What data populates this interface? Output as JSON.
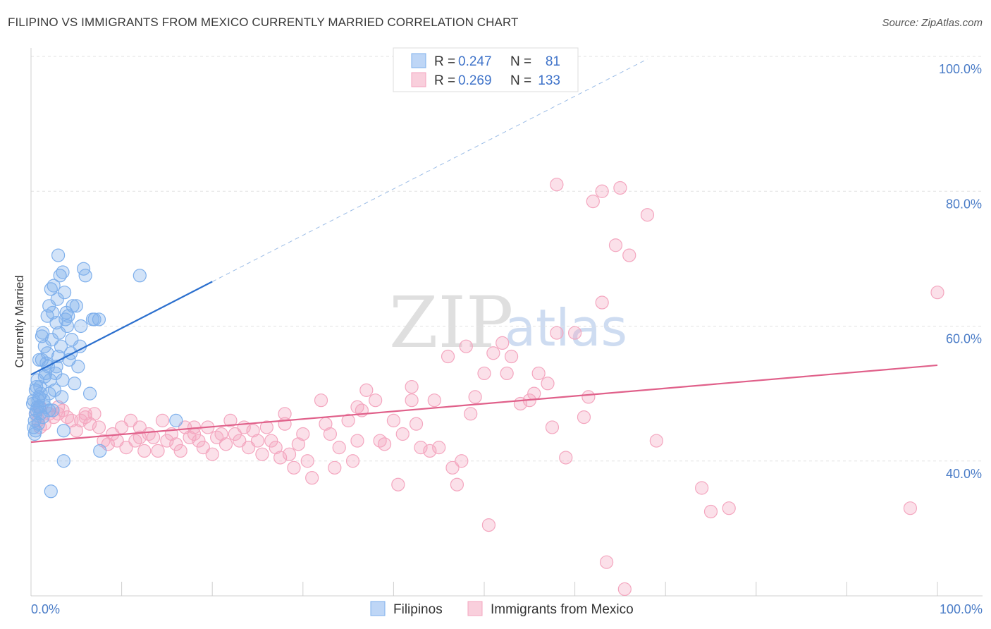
{
  "chart_data": {
    "type": "scatter",
    "title": "FILIPINO VS IMMIGRANTS FROM MEXICO CURRENTLY MARRIED CORRELATION CHART",
    "source": "Source: ZipAtlas.com",
    "ylabel": "Currently Married",
    "xlabel": "",
    "xlim": [
      0,
      100
    ],
    "ylim": [
      20,
      100
    ],
    "x_tick_labels": [
      "0.0%",
      "100.0%"
    ],
    "y_ticks": [
      {
        "value": 100,
        "label": "100.0%"
      },
      {
        "value": 80,
        "label": "80.0%"
      },
      {
        "value": 60,
        "label": "60.0%"
      },
      {
        "value": 40,
        "label": "40.0%"
      }
    ],
    "grid": true,
    "watermark": {
      "part1": "ZIP",
      "part2": "atlas"
    },
    "legend": {
      "placement": "top-center",
      "entries": [
        {
          "r_label": "R =",
          "r_value": "0.247",
          "n_label": "N =",
          "n_value": "81"
        },
        {
          "r_label": "R =",
          "r_value": "0.269",
          "n_label": "N =",
          "n_value": "133"
        }
      ]
    },
    "series": [
      {
        "name": "Filipinos",
        "color": "#7fb0ec",
        "line_color": "#2b6fce",
        "trend": {
          "x0": 0,
          "y0": 52.8,
          "x1": 20,
          "y1": 66.6,
          "dashed_to_x": 68,
          "dashed_to_y": 99.6
        },
        "points": [
          [
            0.3,
            45
          ],
          [
            0.5,
            44.5
          ],
          [
            0.4,
            46
          ],
          [
            0.6,
            47.5
          ],
          [
            0.8,
            49
          ],
          [
            0.5,
            50.5
          ],
          [
            1,
            51
          ],
          [
            0.7,
            48
          ],
          [
            0.9,
            49.5
          ],
          [
            1.2,
            55
          ],
          [
            1.5,
            57
          ],
          [
            1.3,
            59
          ],
          [
            1.8,
            56
          ],
          [
            2,
            63
          ],
          [
            2.2,
            65.5
          ],
          [
            2.5,
            66
          ],
          [
            3,
            70.5
          ],
          [
            3.2,
            67.5
          ],
          [
            3.5,
            68
          ],
          [
            2.8,
            60.5
          ],
          [
            2.4,
            62
          ],
          [
            1.6,
            53
          ],
          [
            1.9,
            54
          ],
          [
            2.1,
            52
          ],
          [
            2.6,
            50.5
          ],
          [
            3.4,
            49.5
          ],
          [
            3.8,
            61
          ],
          [
            4.2,
            55
          ],
          [
            4.5,
            58
          ],
          [
            5,
            63
          ],
          [
            5.5,
            60
          ],
          [
            6,
            67.5
          ],
          [
            5.8,
            68.5
          ],
          [
            7,
            61
          ],
          [
            3.6,
            44.5
          ],
          [
            3.6,
            40
          ],
          [
            2.2,
            35.5
          ],
          [
            0.4,
            44
          ],
          [
            1.1,
            50
          ],
          [
            0.9,
            48
          ],
          [
            1.3,
            46.5
          ],
          [
            2,
            47.5
          ],
          [
            0.6,
            51
          ],
          [
            1.7,
            54.5
          ],
          [
            2.3,
            58
          ],
          [
            3,
            55.5
          ],
          [
            3.3,
            57
          ],
          [
            4,
            60
          ],
          [
            4.8,
            51.5
          ],
          [
            5.2,
            54
          ],
          [
            6.5,
            50
          ],
          [
            7.5,
            61
          ],
          [
            12,
            67.5
          ],
          [
            16,
            46
          ],
          [
            7.6,
            41.5
          ],
          [
            1,
            47
          ],
          [
            1.4,
            49
          ],
          [
            0.2,
            48.5
          ],
          [
            0.7,
            52
          ],
          [
            2.7,
            53
          ],
          [
            3.9,
            62
          ],
          [
            4.4,
            56
          ],
          [
            2.9,
            64
          ],
          [
            3.1,
            59
          ],
          [
            1.5,
            52.5
          ],
          [
            2.4,
            47.5
          ],
          [
            0.9,
            55
          ],
          [
            1.8,
            61.5
          ],
          [
            3.7,
            65
          ],
          [
            4.6,
            63
          ],
          [
            0.5,
            47
          ],
          [
            1.2,
            58.5
          ],
          [
            2,
            50
          ],
          [
            3.5,
            52
          ],
          [
            0.3,
            49
          ],
          [
            0.8,
            45.5
          ],
          [
            1.6,
            48
          ],
          [
            2.8,
            54
          ],
          [
            4.1,
            61.5
          ],
          [
            5.4,
            57
          ],
          [
            6.8,
            61
          ]
        ]
      },
      {
        "name": "Immigrants from Mexico",
        "color": "#f4a6bf",
        "line_color": "#e0608a",
        "trend": {
          "x0": 0,
          "y0": 42.8,
          "x1": 100,
          "y1": 54.2
        },
        "points": [
          [
            0.5,
            47
          ],
          [
            1,
            48
          ],
          [
            1.5,
            45.5
          ],
          [
            2,
            47
          ],
          [
            2.5,
            46.5
          ],
          [
            3,
            48
          ],
          [
            3.5,
            47.5
          ],
          [
            4,
            46.5
          ],
          [
            4.5,
            46
          ],
          [
            5,
            44.5
          ],
          [
            5.5,
            46
          ],
          [
            6,
            47
          ],
          [
            6.5,
            45.5
          ],
          [
            7,
            47
          ],
          [
            7.5,
            45
          ],
          [
            8,
            43
          ],
          [
            8.5,
            42.5
          ],
          [
            9,
            44
          ],
          [
            9.5,
            43
          ],
          [
            10,
            45
          ],
          [
            10.5,
            42
          ],
          [
            11,
            46
          ],
          [
            11.5,
            43
          ],
          [
            12,
            45
          ],
          [
            12.5,
            41.5
          ],
          [
            13,
            44
          ],
          [
            13.5,
            43.5
          ],
          [
            14,
            41.5
          ],
          [
            14.5,
            46
          ],
          [
            15,
            43
          ],
          [
            15.5,
            44
          ],
          [
            16,
            42.5
          ],
          [
            16.5,
            41.5
          ],
          [
            17,
            45
          ],
          [
            17.5,
            43.5
          ],
          [
            18,
            44
          ],
          [
            18.5,
            43
          ],
          [
            19,
            42
          ],
          [
            19.5,
            45
          ],
          [
            20,
            41
          ],
          [
            20.5,
            43.5
          ],
          [
            21,
            44
          ],
          [
            21.5,
            42.5
          ],
          [
            22,
            46
          ],
          [
            22.5,
            44
          ],
          [
            23,
            43
          ],
          [
            23.5,
            45
          ],
          [
            24,
            42
          ],
          [
            24.5,
            44.5
          ],
          [
            25,
            43
          ],
          [
            25.5,
            41
          ],
          [
            26,
            45
          ],
          [
            26.5,
            43
          ],
          [
            27,
            42
          ],
          [
            27.5,
            40.5
          ],
          [
            28,
            45.5
          ],
          [
            28.5,
            41
          ],
          [
            29,
            39
          ],
          [
            29.5,
            42.5
          ],
          [
            30,
            44
          ],
          [
            30.5,
            40
          ],
          [
            31,
            37.5
          ],
          [
            32,
            49
          ],
          [
            32.5,
            45.5
          ],
          [
            33,
            44
          ],
          [
            33.5,
            39
          ],
          [
            34,
            42
          ],
          [
            35,
            46
          ],
          [
            35.5,
            40
          ],
          [
            36,
            43
          ],
          [
            36.5,
            47.5
          ],
          [
            37,
            50.5
          ],
          [
            38,
            49
          ],
          [
            38.5,
            43
          ],
          [
            39,
            42.5
          ],
          [
            40,
            46
          ],
          [
            40.5,
            36.5
          ],
          [
            41,
            44
          ],
          [
            42,
            49
          ],
          [
            42.5,
            45.5
          ],
          [
            43,
            42
          ],
          [
            44,
            41.5
          ],
          [
            44.5,
            49
          ],
          [
            45,
            42
          ],
          [
            46,
            55.5
          ],
          [
            46.5,
            39
          ],
          [
            47,
            36.5
          ],
          [
            47.5,
            40
          ],
          [
            48,
            57
          ],
          [
            48.5,
            47
          ],
          [
            49,
            49.5
          ],
          [
            50,
            53
          ],
          [
            50.5,
            30.5
          ],
          [
            51,
            56
          ],
          [
            52,
            57.5
          ],
          [
            52.5,
            53
          ],
          [
            53,
            55.5
          ],
          [
            54,
            48.5
          ],
          [
            55,
            49
          ],
          [
            55.5,
            50
          ],
          [
            56,
            53
          ],
          [
            57,
            51.5
          ],
          [
            57.5,
            45
          ],
          [
            58,
            59
          ],
          [
            59,
            40.5
          ],
          [
            60,
            59
          ],
          [
            61,
            46.5
          ],
          [
            61.5,
            49.5
          ],
          [
            62,
            78.5
          ],
          [
            63,
            63.5
          ],
          [
            63.5,
            25
          ],
          [
            64.5,
            72
          ],
          [
            65,
            80.5
          ],
          [
            65.5,
            21
          ],
          [
            66,
            70.5
          ],
          [
            68,
            76.5
          ],
          [
            69,
            43
          ],
          [
            74,
            36
          ],
          [
            75,
            32.5
          ],
          [
            77,
            33
          ],
          [
            97,
            33
          ],
          [
            100,
            65
          ],
          [
            63,
            80
          ],
          [
            58,
            81
          ],
          [
            42,
            51
          ],
          [
            36,
            48
          ],
          [
            28,
            47
          ],
          [
            18,
            45
          ],
          [
            12,
            43.5
          ],
          [
            6,
            46.5
          ],
          [
            3,
            47
          ],
          [
            1,
            45
          ],
          [
            0.8,
            46
          ]
        ]
      }
    ]
  }
}
